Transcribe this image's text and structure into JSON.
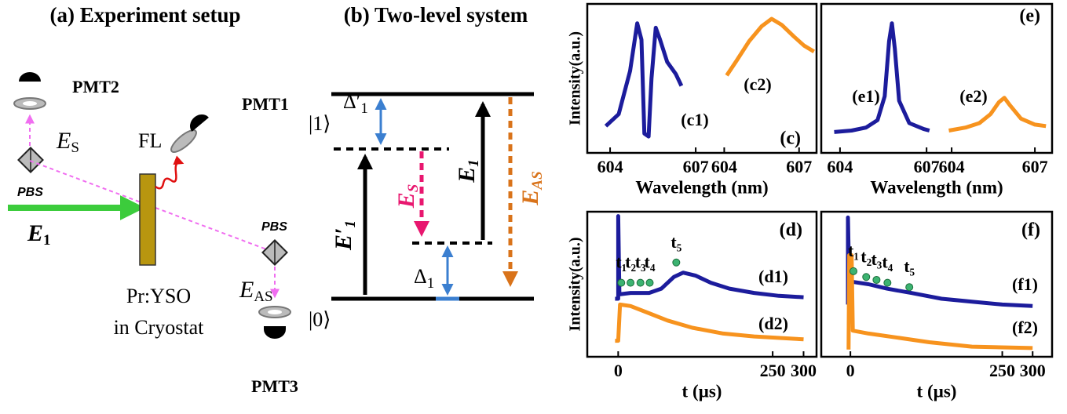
{
  "panel_a": {
    "title": "(a) Experiment setup",
    "pmt2": "PMT2",
    "pmt1": "PMT1",
    "pmt3": "PMT3",
    "fl": "FL",
    "es": {
      "main": "E",
      "sub": "S"
    },
    "e1": {
      "main": "E",
      "sub": "1"
    },
    "eas": {
      "main": "E",
      "sub": "AS"
    },
    "pbs_top": "PBS",
    "pbs_right": "PBS",
    "sample": "Pr:YSO",
    "cryostat": "in Cryostat"
  },
  "panel_b": {
    "title": "(b) Two-level system",
    "ket1": "|1⟩",
    "ket0": "|0⟩",
    "delta1p": {
      "main": "Δ′",
      "sub": "1"
    },
    "delta1": {
      "main": "Δ",
      "sub": "1"
    },
    "e1p": {
      "main": "E′",
      "sub": "1"
    },
    "es": {
      "main": "E",
      "sub": "S"
    },
    "e1": {
      "main": "E",
      "sub": "1"
    },
    "eas": {
      "main": "E",
      "sub": "AS"
    }
  },
  "chart_data": [
    {
      "type": "line",
      "panel": "(c)",
      "xlabel": "Wavelength (nm)",
      "ylabel": "Intensity(a.u.)",
      "ylim": [
        0,
        1
      ],
      "axes": [
        {
          "xlim": [
            603.2,
            607.3
          ],
          "xticks": [
            604,
            607
          ],
          "series": [
            {
              "name": "(c1)",
              "color": "#1c1c9c",
              "x": [
                603.85,
                604.3,
                604.7,
                604.95,
                605.1,
                605.2,
                605.35,
                605.45,
                605.6,
                605.75,
                606.0,
                606.3,
                606.5
              ],
              "values": [
                0.18,
                0.26,
                0.55,
                0.87,
                0.76,
                0.13,
                0.11,
                0.5,
                0.84,
                0.76,
                0.61,
                0.53,
                0.45
              ]
            }
          ]
        },
        {
          "xlim": [
            603.2,
            607.7
          ],
          "xticks": [
            604,
            607
          ],
          "series": [
            {
              "name": "(c2)",
              "color": "#f7931e",
              "x": [
                604.1,
                604.5,
                605.0,
                605.5,
                605.9,
                606.3,
                606.8,
                607.2,
                607.6
              ],
              "values": [
                0.52,
                0.62,
                0.75,
                0.85,
                0.9,
                0.86,
                0.78,
                0.72,
                0.68
              ]
            }
          ]
        }
      ]
    },
    {
      "type": "line",
      "panel": "(e)",
      "xlabel": "Wavelength (nm)",
      "ylim": [
        0,
        1
      ],
      "axes": [
        {
          "xlim": [
            603.35,
            607.35
          ],
          "xticks": [
            604,
            607
          ],
          "series": [
            {
              "name": "(e1)",
              "color": "#1c1c9c",
              "x": [
                603.8,
                604.4,
                604.9,
                605.3,
                605.55,
                605.7,
                605.8,
                605.9,
                606.05,
                606.4,
                606.9,
                607.1
              ],
              "values": [
                0.14,
                0.15,
                0.17,
                0.22,
                0.38,
                0.75,
                0.87,
                0.7,
                0.35,
                0.2,
                0.16,
                0.15
              ]
            }
          ]
        },
        {
          "xlim": [
            603.46,
            607.62
          ],
          "xticks": [
            604,
            607
          ],
          "series": [
            {
              "name": "(e2)",
              "color": "#f7931e",
              "x": [
                603.9,
                604.5,
                605.0,
                605.4,
                605.7,
                605.9,
                606.1,
                606.5,
                607.0,
                607.4
              ],
              "values": [
                0.15,
                0.17,
                0.2,
                0.26,
                0.34,
                0.37,
                0.32,
                0.23,
                0.19,
                0.18
              ]
            }
          ]
        }
      ]
    },
    {
      "type": "line",
      "panel": "(d)",
      "xlabel": "t (µs)",
      "ylabel": "Intensity(a.u.)",
      "ylim": [
        0,
        1
      ],
      "marker_color": "#3cb371",
      "axes": [
        {
          "xlim": [
            -50,
            321
          ],
          "xticks": [
            0,
            250,
            300
          ],
          "series": [
            {
              "name": "(d1)",
              "color": "#1c1c9c",
              "x": [
                -5,
                0,
                0,
                2,
                20,
                50,
                70,
                90,
                105,
                125,
                150,
                180,
                220,
                260,
                300
              ],
              "values": [
                0.4,
                0.4,
                0.97,
                0.43,
                0.44,
                0.44,
                0.47,
                0.55,
                0.58,
                0.56,
                0.51,
                0.47,
                0.44,
                0.42,
                0.41
              ]
            },
            {
              "name": "(d2)",
              "color": "#f7931e",
              "x": [
                -5,
                0,
                3,
                20,
                50,
                80,
                120,
                170,
                220,
                300
              ],
              "values": [
                0.11,
                0.11,
                0.36,
                0.35,
                0.3,
                0.25,
                0.2,
                0.16,
                0.14,
                0.12
              ]
            }
          ]
        }
      ],
      "markers": [
        {
          "label": "t₁",
          "x": 5,
          "y": 0.51
        },
        {
          "label": "t₂",
          "x": 20,
          "y": 0.51
        },
        {
          "label": "t₃",
          "x": 36,
          "y": 0.51
        },
        {
          "label": "t₄",
          "x": 51,
          "y": 0.51
        },
        {
          "label": "t₅",
          "x": 94,
          "y": 0.65
        }
      ]
    },
    {
      "type": "line",
      "panel": "(f)",
      "xlabel": "t (µs)",
      "ylim": [
        0,
        1
      ],
      "marker_color": "#3cb371",
      "axes": [
        {
          "xlim": [
            -48,
            332
          ],
          "xticks": [
            0,
            250,
            300
          ],
          "series": [
            {
              "name": "(f1)",
              "color": "#1c1c9c",
              "x": [
                -4,
                -4,
                -2,
                30,
                60,
                100,
                150,
                200,
                250,
                300
              ],
              "values": [
                0.36,
                0.96,
                0.52,
                0.5,
                0.47,
                0.44,
                0.4,
                0.38,
                0.36,
                0.35
              ]
            },
            {
              "name": "(f2)",
              "color": "#f7931e",
              "x": [
                -3,
                -2,
                2,
                4,
                30,
                80,
                130,
                200,
                300
              ],
              "values": [
                0.05,
                0.7,
                0.7,
                0.18,
                0.16,
                0.13,
                0.1,
                0.07,
                0.06
              ]
            }
          ]
        }
      ],
      "markers": [
        {
          "label": "t₁",
          "x": 5,
          "y": 0.59
        },
        {
          "label": "t₂",
          "x": 26,
          "y": 0.55
        },
        {
          "label": "t₃",
          "x": 43,
          "y": 0.53
        },
        {
          "label": "t₄",
          "x": 61,
          "y": 0.51
        },
        {
          "label": "t₅",
          "x": 97,
          "y": 0.48
        }
      ]
    }
  ]
}
